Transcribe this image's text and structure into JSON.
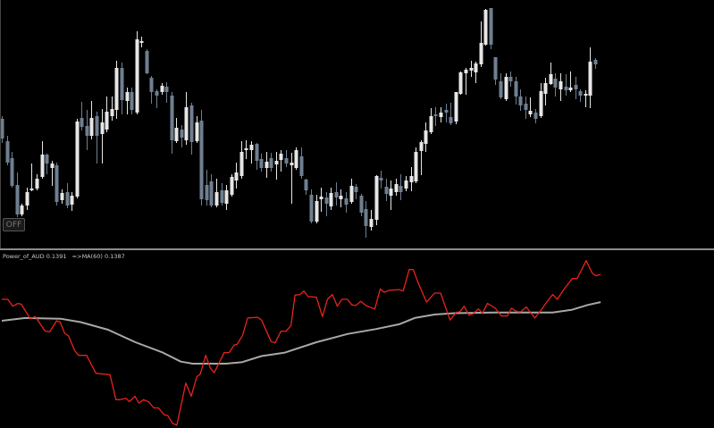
{
  "off_button": {
    "label": "OFF"
  },
  "indicator_label": {
    "name": "Power_of_AUD",
    "value": "0.1391",
    "ma_text": "=>MA(60)",
    "ma_value": "0.1387"
  },
  "colors": {
    "background": "#000000",
    "bull": "#e6e6e6",
    "bear": "#6f7f91",
    "indicator": "#e8241c",
    "ma": "#a8a8a8",
    "separator": "#8c8c8c"
  },
  "chart_data": [
    {
      "type": "candlestick",
      "title": "",
      "grid": false,
      "ylim": [
        2,
        280
      ],
      "ohlc": [
        [
          147,
          150,
          120,
          125
        ],
        [
          122,
          128,
          95,
          98
        ],
        [
          103,
          110,
          70,
          72
        ],
        [
          73,
          87,
          37,
          40
        ],
        [
          40,
          52,
          38,
          50
        ],
        [
          50,
          70,
          45,
          65
        ],
        [
          67,
          97,
          66,
          69
        ],
        [
          69,
          85,
          67,
          80
        ],
        [
          82,
          122,
          80,
          107
        ],
        [
          107,
          108,
          85,
          97
        ],
        [
          92,
          100,
          72,
          97
        ],
        [
          95,
          98,
          50,
          54
        ],
        [
          56,
          68,
          52,
          64
        ],
        [
          65,
          75,
          47,
          50
        ],
        [
          51,
          65,
          44,
          61
        ],
        [
          60,
          147,
          58,
          144
        ],
        [
          148,
          166,
          134,
          138
        ],
        [
          139,
          157,
          112,
          128
        ],
        [
          128,
          167,
          124,
          148
        ],
        [
          150,
          155,
          97,
          128
        ],
        [
          130,
          158,
          97,
          143
        ],
        [
          135,
          172,
          132,
          155
        ],
        [
          150,
          172,
          145,
          158
        ],
        [
          157,
          212,
          147,
          204
        ],
        [
          204,
          210,
          152,
          168
        ],
        [
          167,
          182,
          152,
          177
        ],
        [
          177,
          182,
          152,
          157
        ],
        [
          154,
          245,
          152,
          236
        ],
        [
          232,
          239,
          227,
          234
        ],
        [
          223,
          225,
          197,
          198
        ],
        [
          193,
          195,
          164,
          177
        ],
        [
          178,
          180,
          159,
          173
        ],
        [
          177,
          187,
          174,
          184
        ],
        [
          183,
          188,
          165,
          177
        ],
        [
          173,
          177,
          108,
          123
        ],
        [
          122,
          148,
          120,
          137
        ],
        [
          135,
          140,
          115,
          126
        ],
        [
          123,
          177,
          118,
          160
        ],
        [
          162,
          165,
          107,
          121
        ],
        [
          122,
          150,
          120,
          143
        ],
        [
          145,
          157,
          50,
          57
        ],
        [
          73,
          90,
          50,
          56
        ],
        [
          77,
          85,
          48,
          50
        ],
        [
          50,
          80,
          48,
          65
        ],
        [
          67,
          75,
          50,
          53
        ],
        [
          52,
          73,
          45,
          67
        ],
        [
          62,
          85,
          60,
          82
        ],
        [
          78,
          98,
          69,
          87
        ],
        [
          83,
          122,
          80,
          110
        ],
        [
          112,
          123,
          102,
          114
        ],
        [
          112,
          122,
          97,
          118
        ],
        [
          119,
          120,
          90,
          100
        ],
        [
          102,
          108,
          88,
          92
        ],
        [
          92,
          110,
          81,
          99
        ],
        [
          103,
          109,
          88,
          92
        ],
        [
          96,
          110,
          79,
          100
        ],
        [
          101,
          112,
          88,
          108
        ],
        [
          103,
          112,
          93,
          97
        ],
        [
          95,
          109,
          52,
          98
        ],
        [
          92,
          115,
          90,
          112
        ],
        [
          105,
          115,
          80,
          83
        ],
        [
          79,
          80,
          62,
          67
        ],
        [
          62,
          68,
          30,
          32
        ],
        [
          32,
          62,
          30,
          55
        ],
        [
          57,
          70,
          43,
          60
        ],
        [
          59,
          65,
          38,
          52
        ],
        [
          49,
          70,
          45,
          64
        ],
        [
          65,
          76,
          50,
          59
        ],
        [
          57,
          68,
          48,
          61
        ],
        [
          58,
          65,
          42,
          51
        ],
        [
          54,
          80,
          52,
          72
        ],
        [
          71,
          74,
          57,
          65
        ],
        [
          61,
          63,
          38,
          42
        ],
        [
          46,
          55,
          14,
          27
        ],
        [
          26,
          45,
          22,
          35
        ],
        [
          34,
          84,
          28,
          83
        ],
        [
          81,
          89,
          69,
          78
        ],
        [
          71,
          80,
          55,
          63
        ],
        [
          61,
          78,
          45,
          69
        ],
        [
          65,
          80,
          61,
          74
        ],
        [
          72,
          85,
          56,
          65
        ],
        [
          69,
          83,
          66,
          78
        ],
        [
          76,
          93,
          66,
          83
        ],
        [
          77,
          115,
          75,
          110
        ],
        [
          111,
          123,
          84,
          121
        ],
        [
          119,
          143,
          110,
          134
        ],
        [
          132,
          159,
          130,
          150
        ],
        [
          152,
          160,
          139,
          150
        ],
        [
          149,
          160,
          143,
          154
        ],
        [
          157,
          164,
          143,
          154
        ],
        [
          149,
          165,
          140,
          142
        ],
        [
          144,
          177,
          141,
          177
        ],
        [
          175,
          200,
          174,
          199
        ],
        [
          198,
          204,
          174,
          202
        ],
        [
          201,
          212,
          194,
          204
        ],
        [
          199,
          211,
          187,
          209
        ],
        [
          208,
          256,
          205,
          232
        ],
        [
          230,
          270,
          229,
          269
        ],
        [
          271,
          271,
          225,
          230
        ],
        [
          216,
          216,
          185,
          191
        ],
        [
          189,
          198,
          169,
          171
        ],
        [
          169,
          198,
          167,
          194
        ],
        [
          194,
          200,
          183,
          189
        ],
        [
          189,
          194,
          163,
          172
        ],
        [
          172,
          180,
          156,
          162
        ],
        [
          164,
          172,
          147,
          157
        ],
        [
          152,
          171,
          149,
          156
        ],
        [
          154,
          158,
          142,
          147
        ],
        [
          150,
          187,
          148,
          178
        ],
        [
          175,
          193,
          162,
          187
        ],
        [
          186,
          210,
          185,
          197
        ],
        [
          192,
          198,
          172,
          182
        ],
        [
          180,
          198,
          167,
          189
        ],
        [
          183,
          197,
          173,
          179
        ],
        [
          179,
          200,
          177,
          182
        ],
        [
          185,
          194,
          169,
          180
        ],
        [
          178,
          180,
          166,
          173
        ],
        [
          173,
          179,
          160,
          175
        ],
        [
          173,
          227,
          159,
          211
        ],
        [
          213,
          215,
          203,
          208
        ]
      ]
    },
    {
      "type": "line",
      "title": "",
      "grid": false,
      "ylim": [
        0.13688,
        0.13945
      ],
      "series": [
        {
          "name": "Power_of_AUD",
          "color": "#e8241c",
          "points": [
            [
              0,
              0.13874
            ],
            [
              1.2,
              0.13874
            ],
            [
              2.2,
              0.13864
            ],
            [
              3.2,
              0.13868
            ],
            [
              3.9,
              0.13867
            ],
            [
              5.7,
              0.13846
            ],
            [
              6.7,
              0.13849
            ],
            [
              8.7,
              0.13828
            ],
            [
              9.6,
              0.13827
            ],
            [
              11,
              0.13843
            ],
            [
              11.7,
              0.13841
            ],
            [
              12.6,
              0.13825
            ],
            [
              13.4,
              0.13821
            ],
            [
              14.6,
              0.138
            ],
            [
              15.4,
              0.13793
            ],
            [
              17,
              0.13793
            ],
            [
              18.3,
              0.13775
            ],
            [
              18.9,
              0.13767
            ],
            [
              21.7,
              0.13765
            ],
            [
              22.9,
              0.13729
            ],
            [
              23.7,
              0.13729
            ],
            [
              24.9,
              0.13731
            ],
            [
              25.6,
              0.13726
            ],
            [
              26.7,
              0.13734
            ],
            [
              27.5,
              0.13724
            ],
            [
              28.4,
              0.13729
            ],
            [
              29.4,
              0.13726
            ],
            [
              30.5,
              0.13717
            ],
            [
              31.4,
              0.13717
            ],
            [
              32.6,
              0.13707
            ],
            [
              33.3,
              0.13706
            ],
            [
              34.2,
              0.13695
            ],
            [
              35.1,
              0.13692
            ],
            [
              36.9,
              0.13753
            ],
            [
              38,
              0.13734
            ],
            [
              39.1,
              0.13762
            ],
            [
              39.8,
              0.13766
            ],
            [
              40.9,
              0.13793
            ],
            [
              41.8,
              0.13775
            ],
            [
              42.6,
              0.13768
            ],
            [
              44.6,
              0.13797
            ],
            [
              45.6,
              0.13797
            ],
            [
              46.6,
              0.13808
            ],
            [
              47.2,
              0.13809
            ],
            [
              48.3,
              0.13822
            ],
            [
              49.3,
              0.13847
            ],
            [
              51.3,
              0.13848
            ],
            [
              52.1,
              0.13844
            ],
            [
              54,
              0.13813
            ],
            [
              54.8,
              0.13811
            ],
            [
              56,
              0.13828
            ],
            [
              57,
              0.13828
            ],
            [
              58,
              0.13836
            ],
            [
              58.8,
              0.1388
            ],
            [
              59.8,
              0.13881
            ],
            [
              60.6,
              0.13886
            ],
            [
              61.4,
              0.13878
            ],
            [
              63.1,
              0.13877
            ],
            [
              64.3,
              0.13849
            ],
            [
              65.3,
              0.13874
            ],
            [
              66.3,
              0.13881
            ],
            [
              67.3,
              0.13864
            ],
            [
              68.2,
              0.13874
            ],
            [
              69.3,
              0.13874
            ],
            [
              70.2,
              0.13866
            ],
            [
              71,
              0.13865
            ],
            [
              72,
              0.13871
            ],
            [
              73,
              0.13865
            ],
            [
              74.8,
              0.1386
            ],
            [
              75.9,
              0.13889
            ],
            [
              76.7,
              0.13884
            ],
            [
              77.7,
              0.13887
            ],
            [
              79.7,
              0.13888
            ],
            [
              80.5,
              0.13886
            ],
            [
              81.7,
              0.13917
            ],
            [
              82.5,
              0.13917
            ],
            [
              83.6,
              0.13896
            ],
            [
              85.2,
              0.1387
            ],
            [
              86.8,
              0.13883
            ],
            [
              88,
              0.13883
            ],
            [
              89.9,
              0.13844
            ],
            [
              91.1,
              0.13855
            ],
            [
              91.9,
              0.13856
            ],
            [
              92.7,
              0.13864
            ],
            [
              93.7,
              0.13851
            ],
            [
              94.5,
              0.13853
            ],
            [
              95.6,
              0.1386
            ],
            [
              96.4,
              0.13854
            ],
            [
              97.4,
              0.13868
            ],
            [
              99,
              0.13861
            ],
            [
              100.2,
              0.1385
            ],
            [
              101.4,
              0.1385
            ],
            [
              102.2,
              0.13861
            ],
            [
              103.4,
              0.13856
            ],
            [
              104.1,
              0.13856
            ],
            [
              105.2,
              0.13863
            ],
            [
              105.7,
              0.13858
            ],
            [
              106.9,
              0.13847
            ],
            [
              108.1,
              0.13858
            ],
            [
              109.7,
              0.13874
            ],
            [
              110.5,
              0.13881
            ],
            [
              111.4,
              0.13874
            ],
            [
              112.8,
              0.13889
            ],
            [
              114.4,
              0.13904
            ],
            [
              115.4,
              0.13904
            ],
            [
              117.2,
              0.1393
            ],
            [
              118.4,
              0.13912
            ],
            [
              119.1,
              0.13908
            ],
            [
              120.1,
              0.1391
            ]
          ]
        },
        {
          "name": "MA(60)",
          "color": "#a8a8a8",
          "points": [
            [
              0,
              0.13843
            ],
            [
              4.7,
              0.13847
            ],
            [
              11.8,
              0.13846
            ],
            [
              15.8,
              0.13841
            ],
            [
              21.3,
              0.1383
            ],
            [
              26.8,
              0.13812
            ],
            [
              32.3,
              0.13797
            ],
            [
              35.9,
              0.13784
            ],
            [
              38.3,
              0.13781
            ],
            [
              45,
              0.13781
            ],
            [
              48.1,
              0.13783
            ],
            [
              52.1,
              0.13792
            ],
            [
              56.8,
              0.13797
            ],
            [
              63.1,
              0.13812
            ],
            [
              69.4,
              0.13824
            ],
            [
              75,
              0.13831
            ],
            [
              79.7,
              0.13838
            ],
            [
              82.8,
              0.13847
            ],
            [
              86.8,
              0.13852
            ],
            [
              90.7,
              0.13854
            ],
            [
              98.6,
              0.13855
            ],
            [
              110.5,
              0.13855
            ],
            [
              114.4,
              0.13859
            ],
            [
              117.6,
              0.13866
            ],
            [
              120.1,
              0.1387
            ]
          ]
        }
      ]
    }
  ]
}
